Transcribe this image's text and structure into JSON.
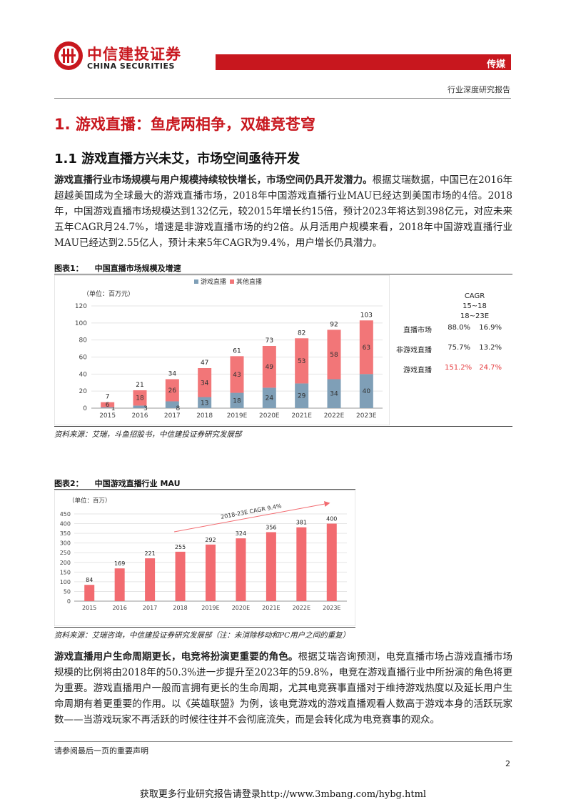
{
  "header": {
    "logo_cn": "中信建投证券",
    "logo_en": "CHINA SECURITIES",
    "sector": "传媒",
    "report_type": "行业深度研究报告"
  },
  "section": {
    "h1": "1. 游戏直播：鱼虎两相争，双雄竞苍穹",
    "h2": "1.1  游戏直播方兴未艾，市场空间亟待开发"
  },
  "para1": {
    "bold": "游戏直播行业市场规模与用户规模持续较快增长，市场空间仍具开发潜力。",
    "text": "根据艾瑞数据，中国已在2016年超越美国成为全球最大的游戏直播市场，2018年中国游戏直播行业MAU已经达到美国市场的4倍。2018年，中国游戏直播市场规模达到132亿元，较2015年增长约15倍，预计2023年将达到398亿元，对应未来五年CAGR月24.7%，增速是非游戏直播市场的约2倍。从月活用户规模来看，2018年中国游戏直播行业MAU已经达到2.55亿人，预计未来5年CAGR为9.4%，用户增长仍具潜力。"
  },
  "figure1": {
    "label": "图表1：",
    "title": "中国直播市场规模及增速",
    "source": "资料来源：艾瑞，斗鱼招股书，中信建投证券研究发展部"
  },
  "figure2": {
    "label": "图表2：",
    "title": "中国游戏直播行业 MAU",
    "source": "资料来源：艾瑞咨询，中信建投证券研究发展部（注：未消除移动和PC用户之间的重复）"
  },
  "chart_data": [
    {
      "type": "bar",
      "stacked": true,
      "unit_label": "（单位：百万元）",
      "categories": [
        "2015",
        "2016",
        "2017",
        "2018",
        "2019E",
        "2020E",
        "2021E",
        "2022E",
        "2023E"
      ],
      "series": [
        {
          "name": "游戏直播",
          "color": "#7f9fb7",
          "values": [
            1,
            3,
            8,
            13,
            18,
            24,
            29,
            34,
            40
          ]
        },
        {
          "name": "其他直播",
          "color": "#f27678",
          "values": [
            6,
            18,
            26,
            34,
            43,
            49,
            53,
            58,
            63
          ]
        }
      ],
      "totals": [
        7,
        21,
        34,
        47,
        61,
        73,
        82,
        92,
        103
      ],
      "ylim": [
        0,
        120
      ],
      "yticks": [
        0,
        20,
        40,
        60,
        80,
        100,
        120
      ],
      "legend": "top"
    },
    {
      "type": "bar",
      "unit_label": "（单位：百万）",
      "categories": [
        "2015",
        "2016",
        "2017",
        "2018",
        "2019E",
        "2020E",
        "2021E",
        "2022E",
        "2023E"
      ],
      "values": [
        84,
        169,
        221,
        255,
        292,
        324,
        356,
        381,
        400
      ],
      "color": "#f26b70",
      "ylim": [
        0,
        450
      ],
      "yticks": [
        0,
        50,
        100,
        150,
        200,
        250,
        300,
        350,
        400,
        450
      ],
      "annotation": "2018-23E CAGR 9.4%"
    }
  ],
  "cagr_table": {
    "title": "CAGR",
    "col1": "15~18",
    "col2": "18~23E",
    "rows": [
      {
        "label": "直播市场",
        "v1": "88.0%",
        "v2": "16.9%"
      },
      {
        "label": "非游戏直播",
        "v1": "75.7%",
        "v2": "13.2%"
      },
      {
        "label": "游戏直播",
        "v1": "151.2%",
        "v2": "24.7%"
      }
    ]
  },
  "para2": {
    "bold": "游戏直播用户生命周期更长，电竞将扮演更重要的角色。",
    "text": "根据艾瑞咨询预测，电竞直播市场占游戏直播市场规模的比例将由2018年的50.3%进一步提升至2023年的59.8%，电竞在游戏直播行业中所扮演的角色将更为重要。游戏直播用户一般而言拥有更长的生命周期，尤其电竞赛事直播对于维持游戏热度以及延长用户生命周期有着更重要的作用。以《英雄联盟》为例，该电竞游戏的游戏直播观看人数高于游戏本身的活跃玩家数——当游戏玩家不再活跃的时候往往并不会彻底流失，而是会转化成为电竞赛事的观众。"
  },
  "footer": {
    "disclaimer": "请参阅最后一页的重要声明",
    "page": "2",
    "promo": "获取更多行业研究报告请登录http://www.3mbang.com/hybg.html"
  }
}
